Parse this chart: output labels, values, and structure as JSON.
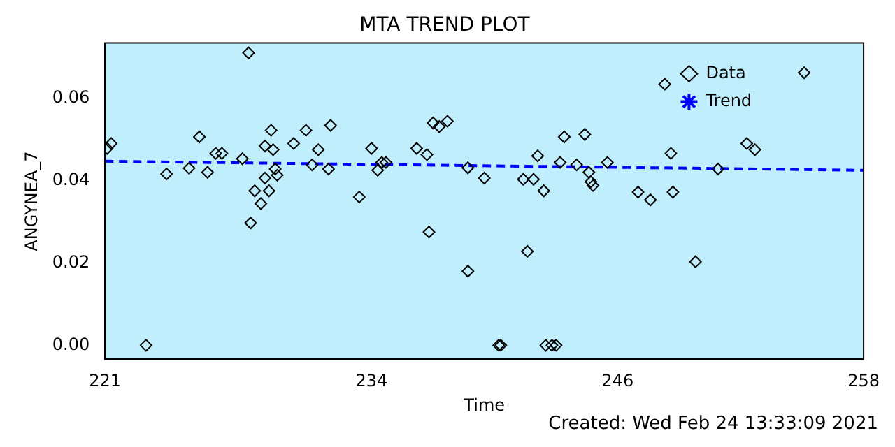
{
  "chart_data": {
    "type": "scatter",
    "title": "MTA TREND PLOT",
    "xlabel": "Time",
    "ylabel": "ANGYNEA_7",
    "xlim": [
      221,
      258
    ],
    "xticks": [
      221,
      234,
      246,
      258
    ],
    "ylim": [
      -0.0034,
      0.0734
    ],
    "yticks": [
      {
        "value": 0,
        "label": "0.00"
      },
      {
        "value": 0.02,
        "label": "0.02"
      },
      {
        "value": 0.04,
        "label": "0.04"
      },
      {
        "value": 0.06,
        "label": "0.06"
      }
    ],
    "grid": false,
    "legend": "top right",
    "marker": "diamond",
    "annotations": [
      "Created: Wed Feb 24 13:33:09 2021"
    ],
    "series": [
      {
        "name": "Data",
        "type": "scatter",
        "color": "#000000",
        "x": [
          221.1,
          221.3,
          223.0,
          224.0,
          225.6,
          225.1,
          226.0,
          226.4,
          226.7,
          227.7,
          228.0,
          228.1,
          228.3,
          228.6,
          228.8,
          228.8,
          229.0,
          229.1,
          229.2,
          229.4,
          229.3,
          230.2,
          230.8,
          231.4,
          231.1,
          232.0,
          231.9,
          233.4,
          234.0,
          234.3,
          234.5,
          234.7,
          236.2,
          236.7,
          236.8,
          237.0,
          237.3,
          237.7,
          238.7,
          238.7,
          239.5,
          240.2,
          240.3,
          241.6,
          241.4,
          241.9,
          242.1,
          242.4,
          242.5,
          242.8,
          243.0,
          243.4,
          243.2,
          244.0,
          244.4,
          244.6,
          244.7,
          244.8,
          245.5,
          247.0,
          247.6,
          248.3,
          248.6,
          248.7,
          249.8,
          250.9,
          252.3,
          252.7,
          255.1
        ],
        "values": [
          0.0478,
          0.049,
          0,
          0.0416,
          0.0506,
          0.043,
          0.042,
          0.0466,
          0.0466,
          0.0453,
          0.071,
          0.0297,
          0.0375,
          0.0344,
          0.0406,
          0.0484,
          0.0375,
          0.0522,
          0.0475,
          0.0413,
          0.0428,
          0.049,
          0.0522,
          0.0475,
          0.0438,
          0.0534,
          0.0428,
          0.036,
          0.0478,
          0.0425,
          0.0444,
          0.0444,
          0.0478,
          0.0463,
          0.0275,
          0.054,
          0.0531,
          0.0544,
          0.0431,
          0.018,
          0.0406,
          0,
          0,
          0.0228,
          0.0403,
          0.0403,
          0.046,
          0.0375,
          0,
          0,
          0,
          0.0506,
          0.0444,
          0.0438,
          0.0512,
          0.042,
          0.0397,
          0.0388,
          0.0444,
          0.0372,
          0.0353,
          0.0634,
          0.0466,
          0.0372,
          0.0203,
          0.0428,
          0.049,
          0.0475,
          0.0662
        ]
      },
      {
        "name": "Trend",
        "type": "line",
        "color": "#0000ff",
        "x": [
          221,
          258
        ],
        "values": [
          0.0447,
          0.0425
        ],
        "line_style": "dashed",
        "marker": "none"
      }
    ]
  }
}
